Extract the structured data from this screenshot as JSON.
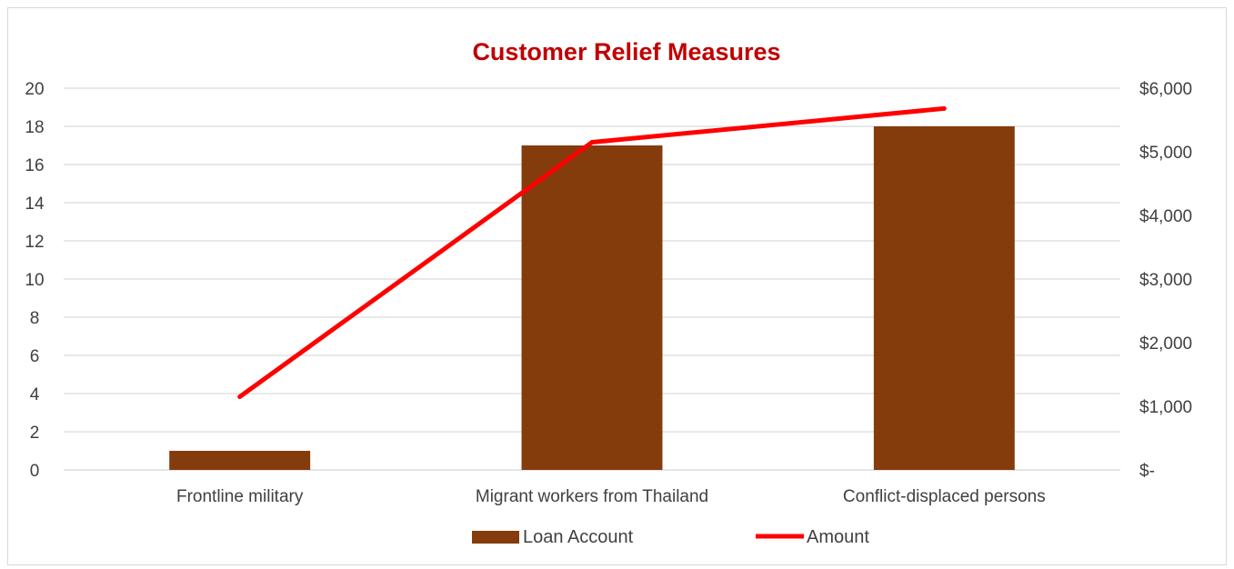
{
  "chart_data": {
    "type": "bar",
    "title": "Customer Relief Measures",
    "categories": [
      "Frontline military",
      "Migrant workers from Thailand",
      "Conflict-displaced persons"
    ],
    "series": [
      {
        "name": "Loan Account",
        "type": "bar",
        "axis": "left",
        "values": [
          1,
          17,
          18
        ]
      },
      {
        "name": "Amount",
        "type": "line",
        "axis": "right",
        "values": [
          1150,
          5150,
          5680
        ]
      }
    ],
    "ylim": [
      0,
      20
    ],
    "y_ticks": [
      "0",
      "2",
      "4",
      "6",
      "8",
      "10",
      "12",
      "14",
      "16",
      "18",
      "20"
    ],
    "y2lim": [
      0,
      6000
    ],
    "y2_ticks": [
      "$-",
      "$1,000",
      "$2,000",
      "$3,000",
      "$4,000",
      "$5,000",
      "$6,000"
    ],
    "grid": true,
    "legend": "bottom"
  },
  "colors": {
    "title": "#c00000",
    "bar": "#843c0c",
    "line": "#ff0000",
    "grid": "#d9d9d9",
    "text": "#404040"
  }
}
